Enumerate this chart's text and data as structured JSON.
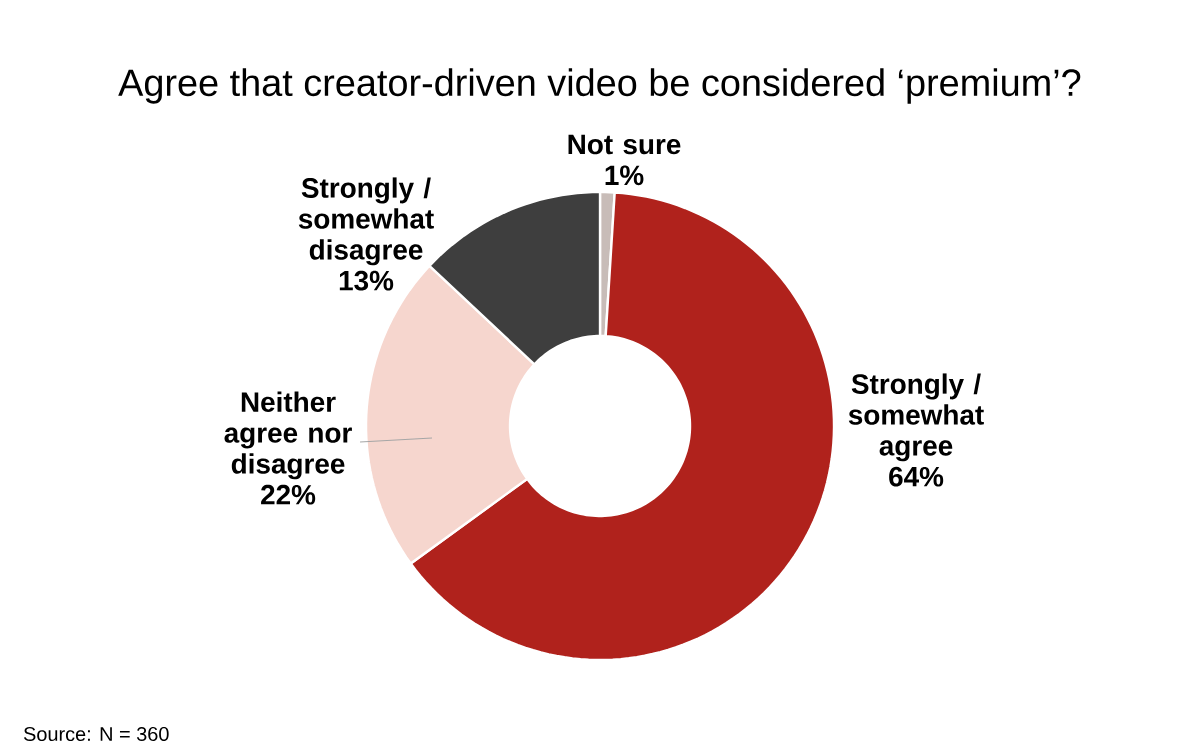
{
  "chart_data": {
    "type": "donut",
    "title": "Agree that creator-driven video be considered ‘premium’?",
    "categories": [
      "Not sure",
      "Strongly / somewhat agree",
      "Neither agree nor disagree",
      "Strongly / somewhat disagree"
    ],
    "values": [
      1,
      64,
      22,
      13
    ],
    "colors": [
      "#c8bcb8",
      "#b0221c",
      "#f6d6ce",
      "#3e3e3e"
    ],
    "value_labels": [
      "1%",
      "64%",
      "22%",
      "13%"
    ],
    "annotations": [
      "Source: N = 360"
    ]
  }
}
